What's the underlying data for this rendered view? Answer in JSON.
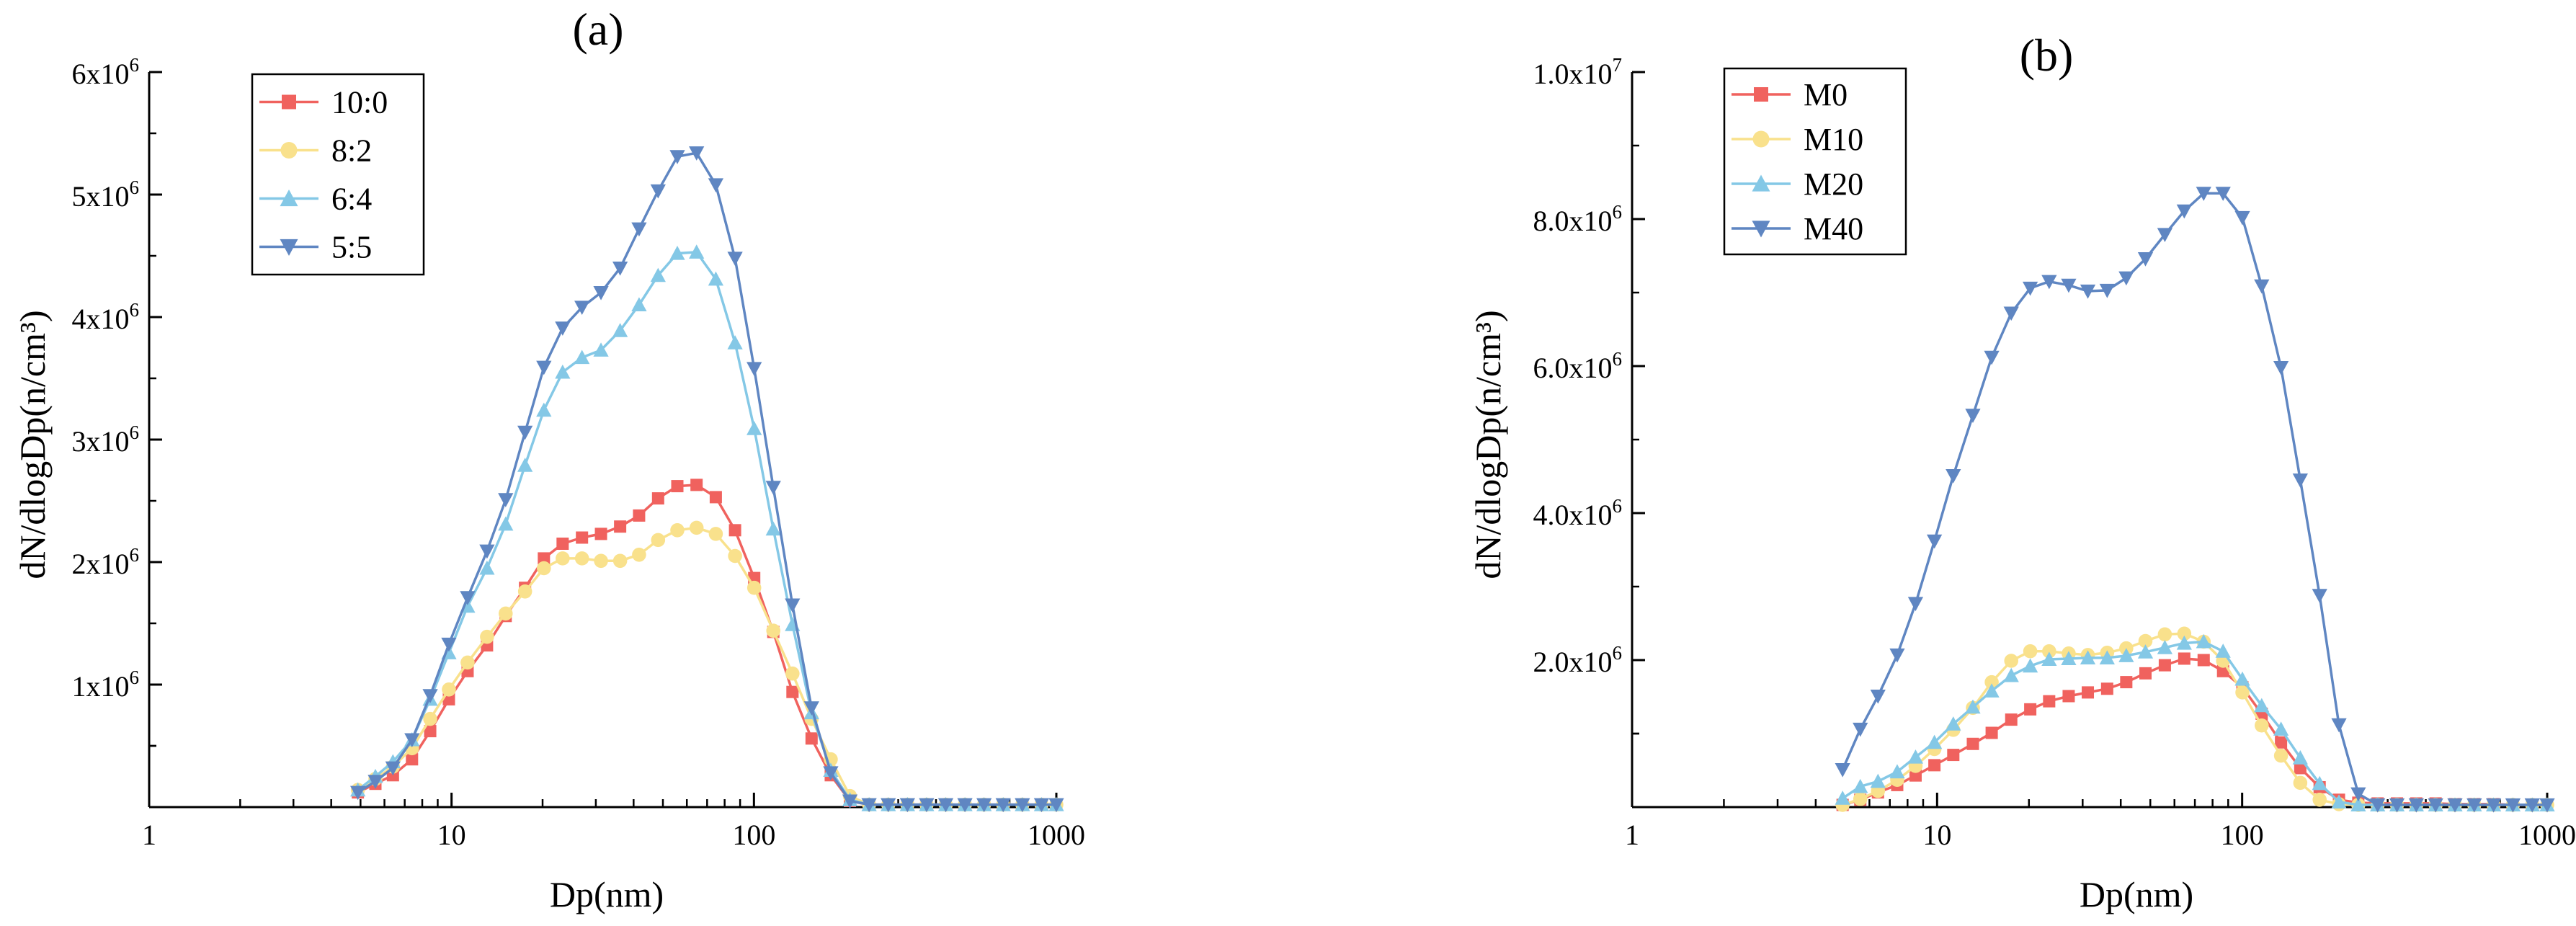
{
  "chart_data": [
    {
      "type": "line",
      "title": "(a)",
      "xlabel": "Dp(nm)",
      "ylabel": "dN/dlogDp(n/cm³)",
      "xscale": "log",
      "xlim": [
        1,
        1000
      ],
      "ylim": [
        0,
        6000000
      ],
      "xticks": [
        {
          "value": 1,
          "label": "1"
        },
        {
          "value": 10,
          "label": "10"
        },
        {
          "value": 100,
          "label": "100"
        },
        {
          "value": 1000,
          "label": "1000"
        }
      ],
      "yticks": [
        {
          "value": 1000000,
          "label": "1x10",
          "exp": "6"
        },
        {
          "value": 2000000,
          "label": "2x10",
          "exp": "6"
        },
        {
          "value": 3000000,
          "label": "3x10",
          "exp": "6"
        },
        {
          "value": 4000000,
          "label": "4x10",
          "exp": "6"
        },
        {
          "value": 5000000,
          "label": "5x10",
          "exp": "6"
        },
        {
          "value": 6000000,
          "label": "6x10",
          "exp": "6"
        }
      ],
      "legend_position": "top-left",
      "x": [
        4.9,
        5.6,
        6.4,
        7.4,
        8.5,
        9.8,
        11.3,
        13.1,
        15.1,
        17.5,
        20.2,
        23.3,
        27.0,
        31.2,
        36.1,
        41.7,
        48.2,
        55.8,
        64.6,
        74.8,
        86.6,
        100.2,
        115.9,
        134.1,
        155.1,
        179.5,
        207.7,
        240.3,
        278.1,
        321.8,
        372.3,
        430.8,
        498.5,
        576.7,
        667.2,
        772.1,
        893.3,
        1000
      ],
      "series": [
        {
          "name": "10:0",
          "color": "#F0625E",
          "marker": "square",
          "values": [
            120000,
            190000,
            260000,
            390000,
            620000,
            880000,
            1110000,
            1320000,
            1560000,
            1790000,
            2030000,
            2150000,
            2200000,
            2230000,
            2290000,
            2380000,
            2520000,
            2620000,
            2630000,
            2530000,
            2260000,
            1870000,
            1430000,
            940000,
            560000,
            260000,
            50000,
            20000,
            20000,
            20000,
            20000,
            20000,
            20000,
            20000,
            20000,
            20000,
            20000,
            20000
          ]
        },
        {
          "name": "8:2",
          "color": "#F9E18C",
          "marker": "circle",
          "values": [
            140000,
            230000,
            330000,
            480000,
            720000,
            960000,
            1180000,
            1390000,
            1580000,
            1760000,
            1950000,
            2030000,
            2030000,
            2010000,
            2010000,
            2060000,
            2180000,
            2260000,
            2280000,
            2230000,
            2050000,
            1790000,
            1440000,
            1090000,
            720000,
            390000,
            90000,
            20000,
            20000,
            20000,
            20000,
            20000,
            20000,
            20000,
            20000,
            20000,
            20000,
            20000
          ]
        },
        {
          "name": "6:4",
          "color": "#84C8E6",
          "marker": "triangle-up",
          "values": [
            140000,
            250000,
            370000,
            550000,
            880000,
            1260000,
            1640000,
            1950000,
            2310000,
            2790000,
            3240000,
            3550000,
            3670000,
            3730000,
            3890000,
            4100000,
            4340000,
            4520000,
            4530000,
            4310000,
            3790000,
            3090000,
            2270000,
            1490000,
            770000,
            300000,
            60000,
            20000,
            20000,
            20000,
            20000,
            20000,
            20000,
            20000,
            20000,
            20000,
            20000,
            20000
          ]
        },
        {
          "name": "5:5",
          "color": "#5F86C2",
          "marker": "triangle-down",
          "values": [
            120000,
            210000,
            320000,
            550000,
            910000,
            1330000,
            1710000,
            2090000,
            2510000,
            3060000,
            3590000,
            3910000,
            4080000,
            4200000,
            4400000,
            4720000,
            5030000,
            5310000,
            5340000,
            5080000,
            4480000,
            3580000,
            2610000,
            1650000,
            810000,
            280000,
            50000,
            20000,
            20000,
            20000,
            20000,
            20000,
            20000,
            20000,
            20000,
            20000,
            20000,
            20000
          ]
        }
      ]
    },
    {
      "type": "line",
      "title": "(b)",
      "xlabel": "Dp(nm)",
      "ylabel": "dN/dlogDp(n/cm³)",
      "xscale": "log",
      "xlim": [
        1,
        1000
      ],
      "ylim": [
        0,
        10000000
      ],
      "xticks": [
        {
          "value": 1,
          "label": "1"
        },
        {
          "value": 10,
          "label": "10"
        },
        {
          "value": 100,
          "label": "100"
        },
        {
          "value": 1000,
          "label": "1000"
        }
      ],
      "yticks": [
        {
          "value": 2000000,
          "label": "2.0x10",
          "exp": "6"
        },
        {
          "value": 4000000,
          "label": "4.0x10",
          "exp": "6"
        },
        {
          "value": 6000000,
          "label": "6.0x10",
          "exp": "6"
        },
        {
          "value": 8000000,
          "label": "8.0x10",
          "exp": "6"
        },
        {
          "value": 10000000,
          "label": "1.0x10",
          "exp": "7"
        }
      ],
      "legend_position": "top-left",
      "x": [
        4.9,
        5.6,
        6.4,
        7.4,
        8.5,
        9.8,
        11.3,
        13.1,
        15.1,
        17.5,
        20.2,
        23.3,
        27.0,
        31.2,
        36.1,
        41.7,
        48.2,
        55.8,
        64.6,
        74.8,
        86.6,
        100.2,
        115.9,
        134.1,
        155.1,
        179.5,
        207.7,
        240.3,
        278.1,
        321.8,
        372.3,
        430.8,
        498.5,
        576.7,
        667.2,
        772.1,
        893.3,
        1000
      ],
      "series": [
        {
          "name": "M0",
          "color": "#F0625E",
          "marker": "square",
          "values": [
            30000,
            100000,
            200000,
            300000,
            430000,
            570000,
            710000,
            860000,
            1010000,
            1190000,
            1330000,
            1440000,
            1510000,
            1560000,
            1610000,
            1700000,
            1820000,
            1930000,
            2020000,
            2000000,
            1850000,
            1630000,
            1270000,
            880000,
            530000,
            270000,
            100000,
            60000,
            50000,
            50000,
            50000,
            50000,
            40000,
            40000,
            40000,
            30000,
            30000,
            30000
          ]
        },
        {
          "name": "M10",
          "color": "#F9E18C",
          "marker": "circle",
          "values": [
            30000,
            110000,
            220000,
            370000,
            560000,
            790000,
            1050000,
            1350000,
            1700000,
            1990000,
            2120000,
            2120000,
            2090000,
            2070000,
            2100000,
            2160000,
            2260000,
            2350000,
            2360000,
            2250000,
            1990000,
            1560000,
            1110000,
            700000,
            330000,
            100000,
            40000,
            30000,
            30000,
            30000,
            30000,
            30000,
            30000,
            30000,
            30000,
            30000,
            30000,
            30000
          ]
        },
        {
          "name": "M20",
          "color": "#84C8E6",
          "marker": "triangle-up",
          "values": [
            120000,
            280000,
            350000,
            480000,
            680000,
            880000,
            1130000,
            1360000,
            1580000,
            1790000,
            1920000,
            2010000,
            2020000,
            2030000,
            2030000,
            2060000,
            2110000,
            2170000,
            2230000,
            2250000,
            2120000,
            1740000,
            1380000,
            1060000,
            670000,
            320000,
            70000,
            30000,
            30000,
            30000,
            30000,
            30000,
            30000,
            30000,
            30000,
            30000,
            30000,
            30000
          ]
        },
        {
          "name": "M40",
          "color": "#5F86C2",
          "marker": "triangle-down",
          "values": [
            510000,
            1060000,
            1510000,
            2070000,
            2770000,
            3620000,
            4510000,
            5330000,
            6120000,
            6720000,
            7060000,
            7150000,
            7100000,
            7020000,
            7030000,
            7200000,
            7460000,
            7790000,
            8110000,
            8350000,
            8350000,
            8020000,
            7090000,
            5980000,
            4450000,
            2880000,
            1120000,
            180000,
            30000,
            30000,
            30000,
            30000,
            30000,
            30000,
            30000,
            30000,
            30000,
            30000
          ]
        }
      ]
    }
  ]
}
